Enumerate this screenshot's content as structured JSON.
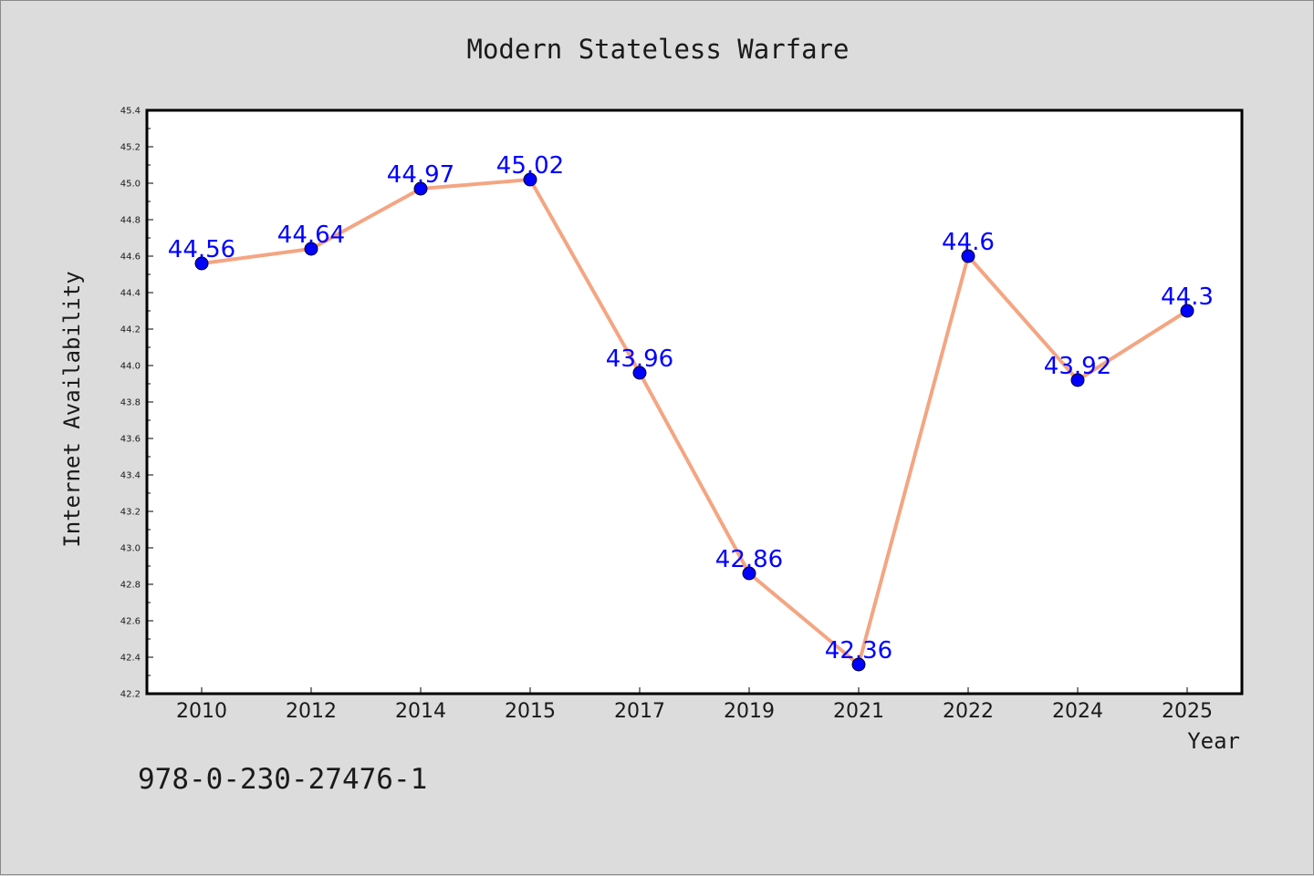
{
  "colors": {
    "background": "#dcdcdc",
    "plot_background": "#ffffff",
    "line": "#f4a582",
    "marker": "#0000ff",
    "data_label": "#0000ff",
    "text": "#1a1a1a"
  },
  "footer": {
    "isbn": "978-0-230-27476-1"
  },
  "chart_data": {
    "type": "line",
    "title": "Modern Stateless Warfare",
    "xlabel": "Year",
    "ylabel": "Internet Availability",
    "categories": [
      "2010",
      "2012",
      "2014",
      "2015",
      "2017",
      "2019",
      "2021",
      "2022",
      "2024",
      "2025"
    ],
    "series": [
      {
        "values": [
          44.56,
          44.64,
          44.97,
          45.02,
          43.96,
          42.86,
          42.36,
          44.6,
          43.92,
          44.3
        ],
        "labels": [
          "44.56",
          "44.64",
          "44.97",
          "45.02",
          "43.96",
          "42.86",
          "42.36",
          "44.6",
          "43.92",
          "44.3"
        ]
      }
    ],
    "ylim": [
      42.2,
      45.4
    ],
    "yticks": [
      "42.2",
      "42.4",
      "42.6",
      "42.8",
      "43.0",
      "43.2",
      "43.4",
      "43.6",
      "43.8",
      "44.0",
      "44.2",
      "44.4",
      "44.6",
      "44.8",
      "45.0",
      "45.2",
      "45.4"
    ],
    "grid": false,
    "legend": "none"
  }
}
